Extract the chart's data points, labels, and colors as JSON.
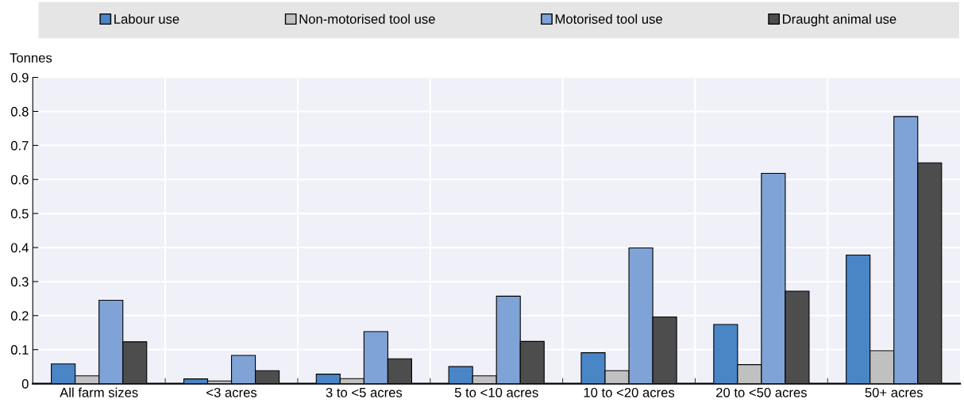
{
  "chart_data": {
    "type": "bar",
    "ylabel": "Tonnes",
    "categories": [
      "All farm sizes",
      "<3 acres",
      "3 to <5 acres",
      "5 to <10 acres",
      "10 to <20 acres",
      "20 to <50 acres",
      "50+ acres"
    ],
    "series": [
      {
        "name": "Labour use",
        "color": "#4a86c6",
        "values": [
          0.058,
          0.014,
          0.028,
          0.05,
          0.091,
          0.174,
          0.378
        ]
      },
      {
        "name": "Non-motorised tool use",
        "color": "#c0c0c0",
        "values": [
          0.023,
          0.008,
          0.015,
          0.023,
          0.038,
          0.056,
          0.097
        ]
      },
      {
        "name": "Motorised tool use",
        "color": "#7fa3d6",
        "values": [
          0.245,
          0.083,
          0.153,
          0.257,
          0.399,
          0.618,
          0.785
        ]
      },
      {
        "name": "Draught animal use",
        "color": "#4d4d4d",
        "values": [
          0.123,
          0.038,
          0.073,
          0.124,
          0.196,
          0.272,
          0.649
        ]
      }
    ],
    "ylim": [
      0,
      0.9
    ],
    "yticks": [
      {
        "value": 0,
        "label": "0"
      },
      0.1,
      0.2,
      0.3,
      0.4,
      0.5,
      0.6,
      0.7,
      0.8,
      0.9
    ],
    "grid": true,
    "legend": "top"
  }
}
